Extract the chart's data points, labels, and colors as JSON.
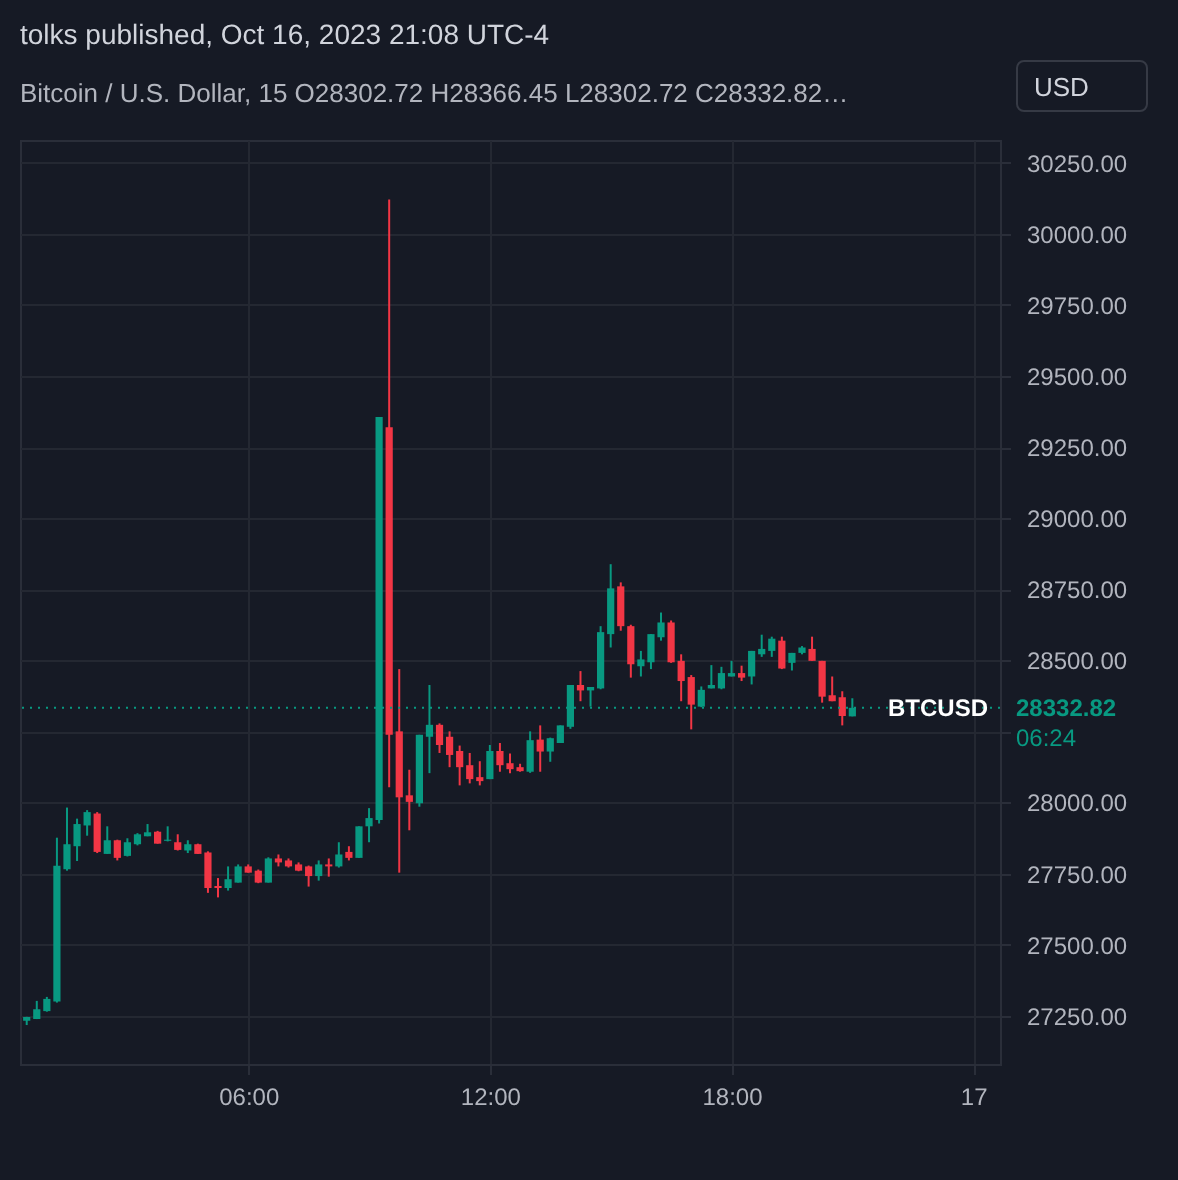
{
  "chart_data": {
    "type": "candlestick",
    "title": "tolks published, Oct 16, 2023 21:08 UTC-4",
    "subtitle": "Bitcoin / U.S. Dollar, 15   O28302.72  H28366.45  L28302.72  C28332.82…",
    "ylabel": "USD",
    "x": [
      "2023-10-16T00:30",
      "2023-10-16T00:45",
      "2023-10-16T01:00",
      "2023-10-16T01:15",
      "2023-10-16T01:30",
      "2023-10-16T01:45",
      "2023-10-16T02:00",
      "2023-10-16T02:15",
      "2023-10-16T02:30",
      "2023-10-16T02:45",
      "2023-10-16T03:00",
      "2023-10-16T03:15",
      "2023-10-16T03:30",
      "2023-10-16T03:45",
      "2023-10-16T04:00",
      "2023-10-16T04:15",
      "2023-10-16T04:30",
      "2023-10-16T04:45",
      "2023-10-16T05:00",
      "2023-10-16T05:15",
      "2023-10-16T05:30",
      "2023-10-16T05:45",
      "2023-10-16T06:00",
      "2023-10-16T06:15",
      "2023-10-16T06:30",
      "2023-10-16T06:45",
      "2023-10-16T07:00",
      "2023-10-16T07:15",
      "2023-10-16T07:30",
      "2023-10-16T07:45",
      "2023-10-16T08:00",
      "2023-10-16T08:15",
      "2023-10-16T08:30",
      "2023-10-16T08:45",
      "2023-10-16T09:00",
      "2023-10-16T09:15",
      "2023-10-16T09:30",
      "2023-10-16T09:45",
      "2023-10-16T10:00",
      "2023-10-16T10:15",
      "2023-10-16T10:30",
      "2023-10-16T10:45",
      "2023-10-16T11:00",
      "2023-10-16T11:15",
      "2023-10-16T11:30",
      "2023-10-16T11:45",
      "2023-10-16T12:00",
      "2023-10-16T12:15",
      "2023-10-16T12:30",
      "2023-10-16T12:45",
      "2023-10-16T13:00",
      "2023-10-16T13:15",
      "2023-10-16T13:30",
      "2023-10-16T13:45",
      "2023-10-16T14:00",
      "2023-10-16T14:15",
      "2023-10-16T14:30",
      "2023-10-16T14:45",
      "2023-10-16T15:00",
      "2023-10-16T15:15",
      "2023-10-16T15:30",
      "2023-10-16T15:45",
      "2023-10-16T16:00",
      "2023-10-16T16:15",
      "2023-10-16T16:30",
      "2023-10-16T16:45",
      "2023-10-16T17:00",
      "2023-10-16T17:15",
      "2023-10-16T17:30",
      "2023-10-16T17:45",
      "2023-10-16T18:00",
      "2023-10-16T18:15",
      "2023-10-16T18:30",
      "2023-10-16T18:45",
      "2023-10-16T19:00",
      "2023-10-16T19:15",
      "2023-10-16T19:30",
      "2023-10-16T19:45",
      "2023-10-16T20:00",
      "2023-10-16T20:15",
      "2023-10-16T20:30",
      "2023-10-16T20:45",
      "2023-10-16T21:00"
    ],
    "ohlc": [
      [
        27232,
        27246,
        27217,
        27245
      ],
      [
        27238,
        27302,
        27238,
        27273
      ],
      [
        27266,
        27316,
        27264,
        27309
      ],
      [
        27300,
        27876,
        27296,
        27777
      ],
      [
        27765,
        27982,
        27760,
        27853
      ],
      [
        27846,
        27943,
        27794,
        27924
      ],
      [
        27919,
        27973,
        27883,
        27966
      ],
      [
        27961,
        27966,
        27822,
        27826
      ],
      [
        27819,
        27916,
        27819,
        27867
      ],
      [
        27867,
        27869,
        27796,
        27805
      ],
      [
        27812,
        27874,
        27810,
        27860
      ],
      [
        27853,
        27892,
        27849,
        27888
      ],
      [
        27881,
        27924,
        27881,
        27895
      ],
      [
        27897,
        27900,
        27855,
        27855
      ],
      [
        27865,
        27916,
        27863,
        27869
      ],
      [
        27860,
        27888,
        27831,
        27833
      ],
      [
        27831,
        27867,
        27822,
        27853
      ],
      [
        27853,
        27855,
        27819,
        27819
      ],
      [
        27824,
        27828,
        27682,
        27699
      ],
      [
        27706,
        27734,
        27666,
        27699
      ],
      [
        27699,
        27775,
        27690,
        27730
      ],
      [
        27718,
        27782,
        27718,
        27775
      ],
      [
        27775,
        27782,
        27753,
        27753
      ],
      [
        27760,
        27764,
        27716,
        27718
      ],
      [
        27718,
        27807,
        27718,
        27803
      ],
      [
        27803,
        27817,
        27775,
        27789
      ],
      [
        27796,
        27803,
        27771,
        27775
      ],
      [
        27782,
        27789,
        27758,
        27760
      ],
      [
        27775,
        27778,
        27704,
        27741
      ],
      [
        27741,
        27796,
        27725,
        27782
      ],
      [
        27782,
        27803,
        27739,
        27775
      ],
      [
        27775,
        27860,
        27771,
        27817
      ],
      [
        27826,
        27846,
        27796,
        27805
      ],
      [
        27805,
        27916,
        27805,
        27916
      ],
      [
        27916,
        27980,
        27860,
        27945
      ],
      [
        27938,
        29356,
        27926,
        29356
      ],
      [
        29320,
        30121,
        28053,
        28238
      ],
      [
        28250,
        28469,
        27753,
        28018
      ],
      [
        28025,
        28115,
        27902,
        28002
      ],
      [
        27997,
        28238,
        27985,
        28238
      ],
      [
        28231,
        28413,
        28103,
        28273
      ],
      [
        28273,
        28278,
        28174,
        28202
      ],
      [
        28231,
        28250,
        28124,
        28167
      ],
      [
        28181,
        28200,
        28060,
        28124
      ],
      [
        28131,
        28174,
        28067,
        28082
      ],
      [
        28089,
        28145,
        28060,
        28075
      ],
      [
        28082,
        28202,
        28082,
        28181
      ],
      [
        28181,
        28209,
        28108,
        28131
      ],
      [
        28138,
        28172,
        28103,
        28117
      ],
      [
        28124,
        28136,
        28108,
        28110
      ],
      [
        28108,
        28250,
        28104,
        28219
      ],
      [
        28221,
        28271,
        28108,
        28179
      ],
      [
        28179,
        28228,
        28143,
        28226
      ],
      [
        28209,
        28271,
        28209,
        28271
      ],
      [
        28266,
        28413,
        28259,
        28413
      ],
      [
        28413,
        28462,
        28356,
        28394
      ],
      [
        28394,
        28406,
        28337,
        28406
      ],
      [
        28401,
        28620,
        28398,
        28599
      ],
      [
        28592,
        28838,
        28545,
        28753
      ],
      [
        28760,
        28774,
        28604,
        28620
      ],
      [
        28620,
        28625,
        28439,
        28486
      ],
      [
        28479,
        28533,
        28443,
        28503
      ],
      [
        28493,
        28592,
        28469,
        28592
      ],
      [
        28581,
        28668,
        28569,
        28633
      ],
      [
        28633,
        28640,
        28491,
        28493
      ],
      [
        28498,
        28521,
        28356,
        28427
      ],
      [
        28441,
        28448,
        28257,
        28344
      ],
      [
        28337,
        28408,
        28335,
        28396
      ],
      [
        28401,
        28483,
        28401,
        28413
      ],
      [
        28401,
        28477,
        28398,
        28455
      ],
      [
        28443,
        28498,
        28443,
        28455
      ],
      [
        28455,
        28481,
        28427,
        28439
      ],
      [
        28443,
        28533,
        28415,
        28533
      ],
      [
        28521,
        28590,
        28512,
        28540
      ],
      [
        28533,
        28583,
        28512,
        28576
      ],
      [
        28569,
        28583,
        28469,
        28471
      ],
      [
        28491,
        28526,
        28464,
        28526
      ],
      [
        28526,
        28550,
        28521,
        28545
      ],
      [
        28540,
        28583,
        28498,
        28498
      ],
      [
        28498,
        28498,
        28351,
        28372
      ],
      [
        28377,
        28443,
        28356,
        28356
      ],
      [
        28370,
        28391,
        28271,
        28304
      ],
      [
        28302.72,
        28366.45,
        28302.72,
        28332.82
      ]
    ],
    "xlim": [
      "2023-10-16T00:20",
      "2023-10-17T00:40"
    ],
    "xticks": [
      {
        "value": "2023-10-16T06:00",
        "label": "06:00"
      },
      {
        "value": "2023-10-16T12:00",
        "label": "12:00"
      },
      {
        "value": "2023-10-16T18:00",
        "label": "18:00"
      },
      {
        "value": "2023-10-17T00:00",
        "label": "17"
      }
    ],
    "ylim": [
      27080,
      30330
    ],
    "yticks": [
      {
        "value": 27250,
        "label": "27250.00"
      },
      {
        "value": 27500,
        "label": "27500.00"
      },
      {
        "value": 27750,
        "label": "27750.00"
      },
      {
        "value": 28000,
        "label": "28000.00"
      },
      {
        "value": 28250,
        "label": null
      },
      {
        "value": 28500,
        "label": "28500.00"
      },
      {
        "value": 28750,
        "label": "28750.00"
      },
      {
        "value": 29000,
        "label": "29000.00"
      },
      {
        "value": 29250,
        "label": "29250.00"
      },
      {
        "value": 29500,
        "label": "29500.00"
      },
      {
        "value": 29750,
        "label": "29750.00"
      },
      {
        "value": 30000,
        "label": "30000.00"
      },
      {
        "value": 30250,
        "label": "30250.00"
      }
    ],
    "grid": true,
    "ref_lines": [
      {
        "axis": "y",
        "value": 28332.82,
        "label": "BTCUSD",
        "color": "#089981",
        "line_style": "dotted"
      }
    ],
    "annotations": [
      "28332.82",
      "06:24"
    ]
  }
}
